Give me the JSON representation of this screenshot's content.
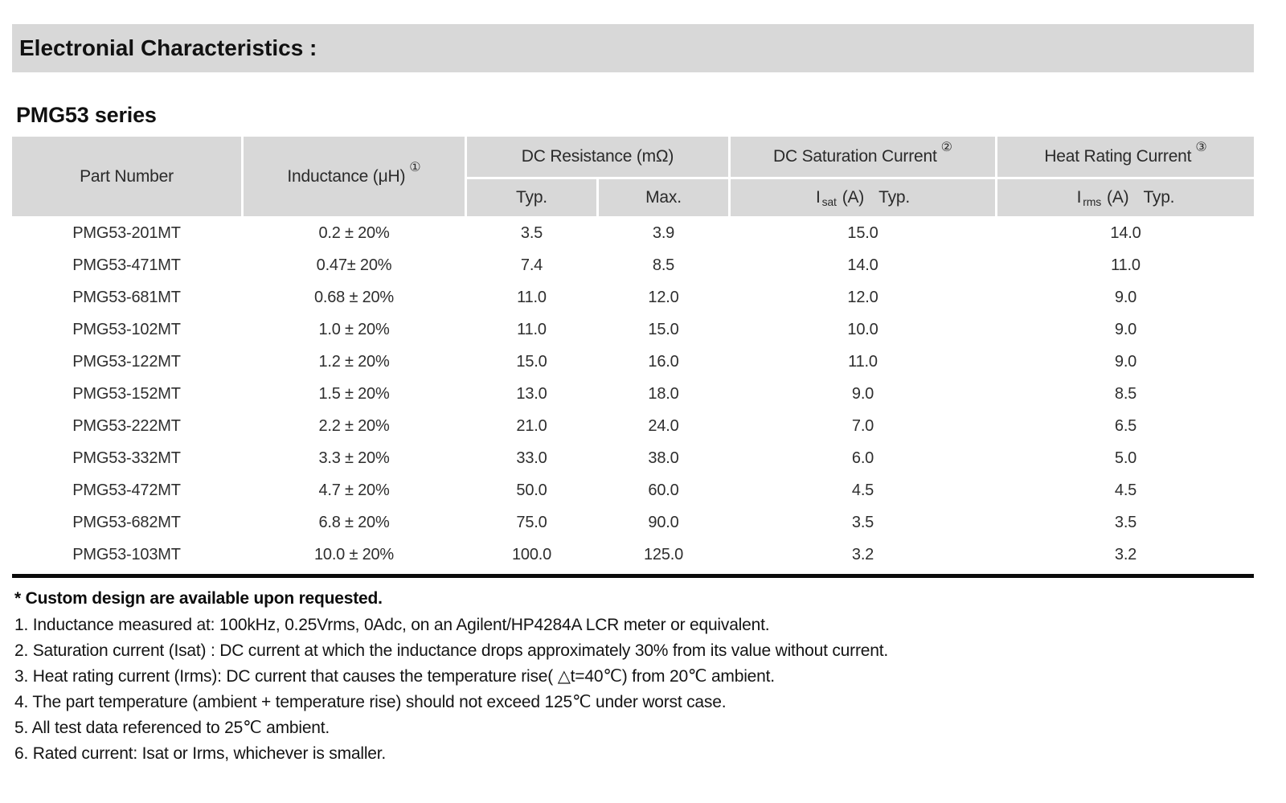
{
  "page": {
    "section_title": "Electronial Characteristics :",
    "series_title": "PMG53 series"
  },
  "table": {
    "headers": {
      "part_number": "Part Number",
      "inductance": "Inductance (μH)",
      "inductance_note_ref": "①",
      "dc_resistance_group": "DC Resistance (mΩ)",
      "dcr_typ": "Typ.",
      "dcr_max": "Max.",
      "saturation_group": "DC Saturation Current",
      "saturation_note_ref": "②",
      "sat_symbol": "I",
      "sat_subscript": "sat",
      "sat_unit": "(A)",
      "sat_typ": "Typ.",
      "heat_group": "Heat Rating Current",
      "heat_note_ref": "③",
      "heat_symbol": "I",
      "heat_subscript": "rms",
      "heat_unit": "(A)",
      "heat_typ": "Typ."
    },
    "rows": [
      {
        "part": "PMG53-201MT",
        "inductance": "0.2 ± 20%",
        "typ": "3.5",
        "max": "3.9",
        "isat": "15.0",
        "irms": "14.0"
      },
      {
        "part": "PMG53-471MT",
        "inductance": "0.47± 20%",
        "typ": "7.4",
        "max": "8.5",
        "isat": "14.0",
        "irms": "11.0"
      },
      {
        "part": "PMG53-681MT",
        "inductance": "0.68 ± 20%",
        "typ": "11.0",
        "max": "12.0",
        "isat": "12.0",
        "irms": "9.0"
      },
      {
        "part": "PMG53-102MT",
        "inductance": "1.0 ± 20%",
        "typ": "11.0",
        "max": "15.0",
        "isat": "10.0",
        "irms": "9.0"
      },
      {
        "part": "PMG53-122MT",
        "inductance": "1.2 ± 20%",
        "typ": "15.0",
        "max": "16.0",
        "isat": "11.0",
        "irms": "9.0"
      },
      {
        "part": "PMG53-152MT",
        "inductance": "1.5 ± 20%",
        "typ": "13.0",
        "max": "18.0",
        "isat": "9.0",
        "irms": "8.5"
      },
      {
        "part": "PMG53-222MT",
        "inductance": "2.2 ± 20%",
        "typ": "21.0",
        "max": "24.0",
        "isat": "7.0",
        "irms": "6.5"
      },
      {
        "part": "PMG53-332MT",
        "inductance": "3.3 ± 20%",
        "typ": "33.0",
        "max": "38.0",
        "isat": "6.0",
        "irms": "5.0"
      },
      {
        "part": "PMG53-472MT",
        "inductance": "4.7 ± 20%",
        "typ": "50.0",
        "max": "60.0",
        "isat": "4.5",
        "irms": "4.5"
      },
      {
        "part": "PMG53-682MT",
        "inductance": "6.8 ± 20%",
        "typ": "75.0",
        "max": "90.0",
        "isat": "3.5",
        "irms": "3.5"
      },
      {
        "part": "PMG53-103MT",
        "inductance": "10.0 ± 20%",
        "typ": "100.0",
        "max": "125.0",
        "isat": "3.2",
        "irms": "3.2"
      }
    ]
  },
  "notes": {
    "custom": "* Custom design are available upon requested.",
    "items": [
      "1. Inductance measured at: 100kHz, 0.25Vrms, 0Adc, on an Agilent/HP4284A LCR meter or equivalent.",
      "2. Saturation current (Isat) : DC current at which the inductance drops approximately 30% from its value without current.",
      "3. Heat rating current (Irms): DC current that causes the temperature rise( △t=40℃) from 20℃ ambient.",
      "4. The part temperature (ambient + temperature rise) should not exceed 125℃ under worst case.",
      "5. All test data referenced to 25℃ ambient.",
      "6. Rated current: Isat or Irms, whichever is smaller."
    ]
  },
  "colors": {
    "header_bg": "#d8d8d8",
    "rule": "#0a0a0a",
    "text": "#1f1f1f"
  }
}
